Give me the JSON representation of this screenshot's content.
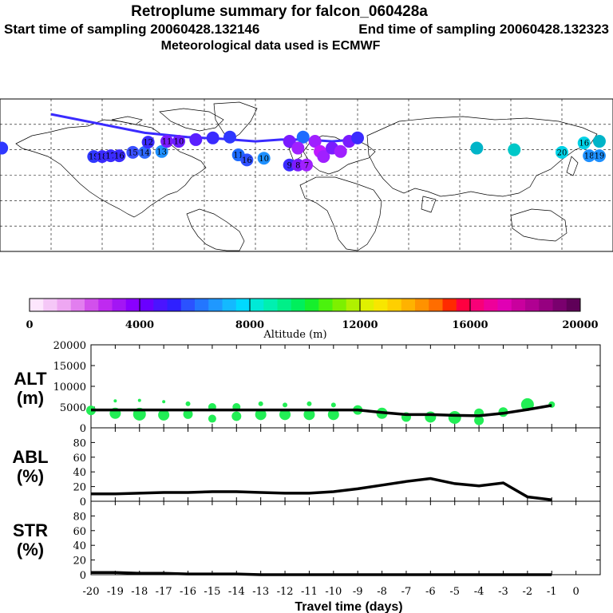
{
  "header": {
    "title": "Retroplume summary for falcon_060428a",
    "start": "Start time of sampling 20060428.132146",
    "end": "End time of sampling 20060428.132323",
    "met": "Meteorological data used is ECMWF"
  },
  "map": {
    "plume_points": [
      {
        "lon": -179,
        "lat": 32,
        "label": "",
        "color": "#2f38ff"
      },
      {
        "lon": -125,
        "lat": 22,
        "label": "19",
        "color": "#2f38ff"
      },
      {
        "lon": -120,
        "lat": 22,
        "label": "18",
        "color": "#3a2bff"
      },
      {
        "lon": -115,
        "lat": 23,
        "label": "17",
        "color": "#3a2bff"
      },
      {
        "lon": -110,
        "lat": 23,
        "label": "16",
        "color": "#3a2bff"
      },
      {
        "lon": -102,
        "lat": 27,
        "label": "15",
        "color": "#3a50ff"
      },
      {
        "lon": -95,
        "lat": 27,
        "label": "14",
        "color": "#2f6aff"
      },
      {
        "lon": -85,
        "lat": 28,
        "label": "13",
        "color": "#1e90ff"
      },
      {
        "lon": -93,
        "lat": 39,
        "label": "12",
        "color": "#3a2bff"
      },
      {
        "lon": -82,
        "lat": 40,
        "label": "11",
        "color": "#7a1bff"
      },
      {
        "lon": -75,
        "lat": 40,
        "label": "10",
        "color": "#6a1cff"
      },
      {
        "lon": -65,
        "lat": 42,
        "label": "",
        "color": "#5a1fff"
      },
      {
        "lon": -55,
        "lat": 44,
        "label": "",
        "color": "#3a2bff"
      },
      {
        "lon": -45,
        "lat": 45,
        "label": "",
        "color": "#2f38ff"
      },
      {
        "lon": -40,
        "lat": 24,
        "label": "11",
        "color": "#1e6cff"
      },
      {
        "lon": -35,
        "lat": 18,
        "label": "16",
        "color": "#2f50ff"
      },
      {
        "lon": -25,
        "lat": 20,
        "label": "10",
        "color": "#1e90ff"
      },
      {
        "lon": -10,
        "lat": 12,
        "label": "9",
        "color": "#3a2bff"
      },
      {
        "lon": -5,
        "lat": 12,
        "label": "8",
        "color": "#7a1bff"
      },
      {
        "lon": 0,
        "lat": 12,
        "label": "7",
        "color": "#a020ff"
      },
      {
        "lon": -2,
        "lat": 45,
        "label": "",
        "color": "#1e6cff"
      },
      {
        "lon": -10,
        "lat": 40,
        "label": "",
        "color": "#7a1bff"
      },
      {
        "lon": 5,
        "lat": 40,
        "label": "",
        "color": "#a020ff"
      },
      {
        "lon": -5,
        "lat": 32,
        "label": "",
        "color": "#a020ff"
      },
      {
        "lon": 8,
        "lat": 28,
        "label": "",
        "color": "#c018ff"
      },
      {
        "lon": 10,
        "lat": 22,
        "label": "",
        "color": "#a020ff"
      },
      {
        "lon": 15,
        "lat": 32,
        "label": "",
        "color": "#7a1bff"
      },
      {
        "lon": 20,
        "lat": 28,
        "label": "",
        "color": "#a020ff"
      },
      {
        "lon": 25,
        "lat": 40,
        "label": "",
        "color": "#7a1bff"
      },
      {
        "lon": 30,
        "lat": 44,
        "label": "",
        "color": "#3a2bff"
      },
      {
        "lon": 100,
        "lat": 32,
        "label": "",
        "color": "#00b4c8"
      },
      {
        "lon": 122,
        "lat": 30,
        "label": "",
        "color": "#00c8c8"
      },
      {
        "lon": 150,
        "lat": 27,
        "label": "20",
        "color": "#00d2e6"
      },
      {
        "lon": 166,
        "lat": 23,
        "label": "18",
        "color": "#1e90ff"
      },
      {
        "lon": 172,
        "lat": 23,
        "label": "19",
        "color": "#1e90ff"
      },
      {
        "lon": 163,
        "lat": 38,
        "label": "16",
        "color": "#00d2e6"
      },
      {
        "lon": 172,
        "lat": 40,
        "label": "",
        "color": "#00b4c8"
      }
    ],
    "plume_track": [
      [
        -150,
        72
      ],
      [
        -120,
        60
      ],
      [
        -95,
        50
      ],
      [
        -70,
        45
      ],
      [
        -50,
        43
      ],
      [
        -30,
        40
      ],
      [
        -15,
        42
      ],
      [
        0,
        42
      ],
      [
        15,
        40
      ],
      [
        28,
        42
      ]
    ]
  },
  "colorbar": {
    "ticks": [
      "0",
      "4000",
      "8000",
      "12000",
      "16000",
      "20000"
    ],
    "label": "Altitude (m)",
    "colors": [
      "#fde6fd",
      "#f5c7f7",
      "#eea7f2",
      "#e27eef",
      "#d250ec",
      "#bf2af0",
      "#a316f4",
      "#8a00ff",
      "#6a00ff",
      "#4a14ff",
      "#2f20ff",
      "#2b52ff",
      "#2376ff",
      "#1f98ff",
      "#14b9ff",
      "#00d9ff",
      "#00ead7",
      "#00f0b0",
      "#00ef88",
      "#00ef5c",
      "#16ef2c",
      "#4bf20d",
      "#7df000",
      "#b0f000",
      "#e0f000",
      "#f8e600",
      "#ffcf00",
      "#ffb200",
      "#ff9200",
      "#ff6d00",
      "#ff2a00",
      "#ff0040",
      "#f80078",
      "#ee009a",
      "#e000b4",
      "#c9009e",
      "#b00092",
      "#960080",
      "#7a006e",
      "#5f0058"
    ]
  },
  "chart_data": [
    {
      "type": "line",
      "title": "ALT",
      "ylabel_line1": "ALT",
      "ylabel_line2": "(m)",
      "x": [
        -20,
        -19,
        -18,
        -17,
        -16,
        -15,
        -14,
        -13,
        -12,
        -11,
        -10,
        -9,
        -8,
        -7,
        -6,
        -5,
        -4,
        -3,
        -2,
        -1
      ],
      "values": [
        4300,
        4300,
        4300,
        4300,
        4300,
        4300,
        4300,
        4300,
        4300,
        4300,
        4300,
        4300,
        3700,
        3200,
        3200,
        3000,
        2900,
        3500,
        4400,
        5400
      ],
      "ylim": [
        0,
        20000
      ],
      "yticks": [
        "0",
        "5000",
        "10000",
        "15000",
        "20000"
      ],
      "scatter": [
        {
          "x": -20,
          "y": 4200,
          "r": 6
        },
        {
          "x": -19,
          "y": 3500,
          "r": 7
        },
        {
          "x": -19,
          "y": 6500,
          "r": 2
        },
        {
          "x": -18,
          "y": 3300,
          "r": 8
        },
        {
          "x": -18,
          "y": 6600,
          "r": 2
        },
        {
          "x": -17,
          "y": 3100,
          "r": 7
        },
        {
          "x": -17,
          "y": 6300,
          "r": 2
        },
        {
          "x": -16,
          "y": 3300,
          "r": 6
        },
        {
          "x": -16,
          "y": 5800,
          "r": 3
        },
        {
          "x": -15,
          "y": 2200,
          "r": 5
        },
        {
          "x": -15,
          "y": 5000,
          "r": 5
        },
        {
          "x": -14,
          "y": 2800,
          "r": 6
        },
        {
          "x": -14,
          "y": 5000,
          "r": 5
        },
        {
          "x": -13,
          "y": 3200,
          "r": 7
        },
        {
          "x": -13,
          "y": 5800,
          "r": 3
        },
        {
          "x": -12,
          "y": 3200,
          "r": 7
        },
        {
          "x": -12,
          "y": 5500,
          "r": 3
        },
        {
          "x": -11,
          "y": 3200,
          "r": 7
        },
        {
          "x": -11,
          "y": 5800,
          "r": 3
        },
        {
          "x": -10,
          "y": 3200,
          "r": 7
        },
        {
          "x": -10,
          "y": 5500,
          "r": 3
        },
        {
          "x": -9,
          "y": 4300,
          "r": 6
        },
        {
          "x": -8,
          "y": 3500,
          "r": 7
        },
        {
          "x": -7,
          "y": 2600,
          "r": 6
        },
        {
          "x": -6,
          "y": 2600,
          "r": 7
        },
        {
          "x": -5,
          "y": 2500,
          "r": 8
        },
        {
          "x": -4,
          "y": 1800,
          "r": 6
        },
        {
          "x": -4,
          "y": 3500,
          "r": 6
        },
        {
          "x": -3,
          "y": 3800,
          "r": 6
        },
        {
          "x": -2,
          "y": 5600,
          "r": 8
        },
        {
          "x": -1,
          "y": 5600,
          "r": 4
        }
      ]
    },
    {
      "type": "line",
      "title": "ABL",
      "ylabel_line1": "ABL",
      "ylabel_line2": "(%)",
      "x": [
        -20,
        -19,
        -18,
        -17,
        -16,
        -15,
        -14,
        -13,
        -12,
        -11,
        -10,
        -9,
        -8,
        -7,
        -6,
        -5,
        -4,
        -3,
        -2,
        -1
      ],
      "values": [
        10,
        10,
        11,
        12,
        12,
        13,
        13,
        12,
        11,
        11,
        13,
        17,
        22,
        27,
        31,
        24,
        21,
        25,
        6,
        2
      ],
      "ylim": [
        0,
        100
      ],
      "yticks": [
        "0",
        "20",
        "40",
        "60",
        "80"
      ]
    },
    {
      "type": "line",
      "title": "STR",
      "ylabel_line1": "STR",
      "ylabel_line2": "(%)",
      "x": [
        -20,
        -19,
        -18,
        -17,
        -16,
        -15,
        -14,
        -13,
        -12,
        -11,
        -10,
        -9,
        -8,
        -7,
        -6,
        -5,
        -4,
        -3,
        -2,
        -1
      ],
      "values": [
        3,
        3,
        2,
        2,
        1,
        1,
        1,
        0,
        0,
        0,
        0,
        0,
        0,
        0,
        0,
        0,
        0,
        0,
        0,
        0
      ],
      "ylim": [
        0,
        100
      ],
      "yticks": [
        "0",
        "20",
        "40",
        "60",
        "80"
      ],
      "xlabel": "Travel time (days)",
      "xticks": [
        "-20",
        "-19",
        "-18",
        "-17",
        "-16",
        "-15",
        "-14",
        "-13",
        "-12",
        "-11",
        "-10",
        "-9",
        "-8",
        "-7",
        "-6",
        "-5",
        "-4",
        "-3",
        "-2",
        "-1",
        "0"
      ]
    }
  ]
}
